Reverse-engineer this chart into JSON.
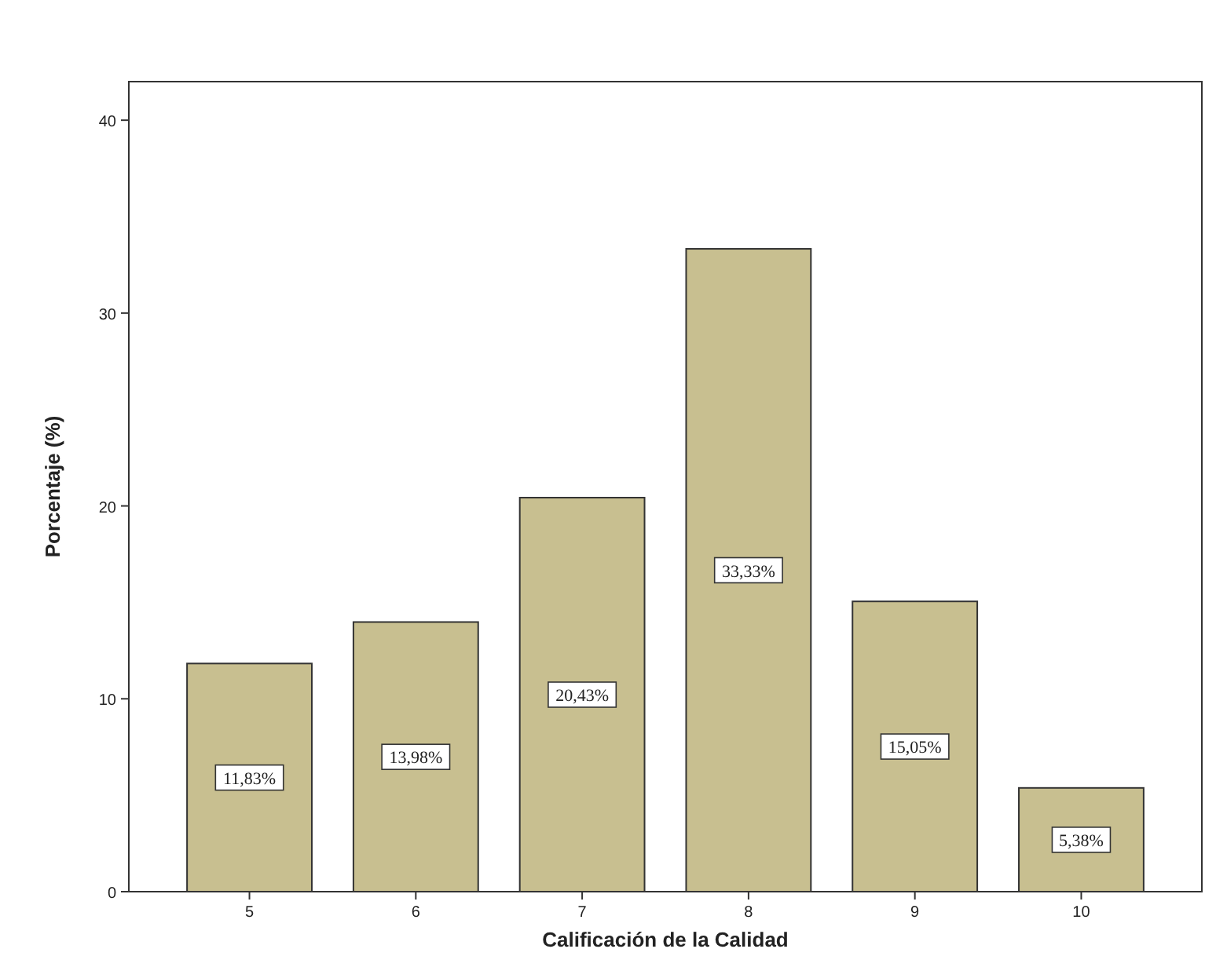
{
  "chart_data": {
    "type": "bar",
    "xlabel": "Calificación de la Calidad",
    "ylabel": "Porcentaje (%)",
    "categories": [
      "5",
      "6",
      "7",
      "8",
      "9",
      "10"
    ],
    "values": [
      11.83,
      13.98,
      20.43,
      33.33,
      15.05,
      5.38
    ],
    "value_labels": [
      "11,83%",
      "13,98%",
      "20,43%",
      "33,33%",
      "15,05%",
      "5,38%"
    ],
    "color": "#c8bf90",
    "ylim": [
      0,
      42
    ],
    "yticks": [
      0,
      10,
      20,
      30,
      40
    ],
    "grid": false
  }
}
